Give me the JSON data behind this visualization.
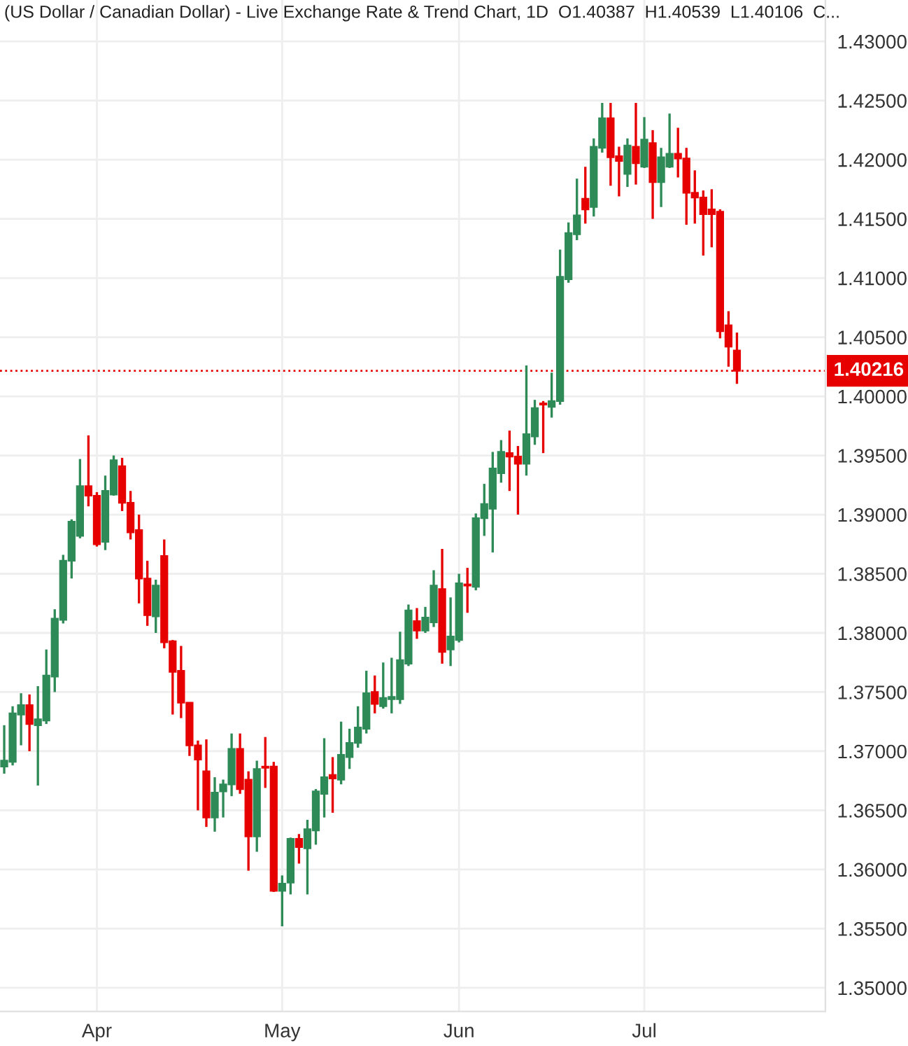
{
  "chart_data": {
    "type": "candlestick",
    "title": "(US Dollar / Canadian Dollar) - Live Exchange Rate & Trend Chart, 1D  O1.40387  H1.40539  L1.40106  C...",
    "categories": [
      null,
      null,
      null,
      null,
      null,
      null,
      null,
      null,
      null,
      null,
      null,
      "Apr",
      null,
      null,
      null,
      null,
      null,
      null,
      null,
      null,
      null,
      null,
      null,
      null,
      null,
      null,
      null,
      null,
      null,
      null,
      null,
      null,
      null,
      "May",
      null,
      null,
      null,
      null,
      null,
      null,
      null,
      null,
      null,
      null,
      null,
      null,
      null,
      null,
      null,
      null,
      null,
      null,
      null,
      null,
      "Jun",
      null,
      null,
      null,
      null,
      null,
      null,
      null,
      null,
      null,
      null,
      null,
      null,
      null,
      null,
      null,
      null,
      null,
      null,
      null,
      null,
      null,
      "Jul",
      null,
      null,
      null,
      null,
      null,
      null,
      null,
      null,
      null,
      null,
      null
    ],
    "ohlc": [
      [
        1.3687,
        1.3722,
        1.3681,
        1.3692
      ],
      [
        1.3691,
        1.3738,
        1.3688,
        1.3732
      ],
      [
        1.3731,
        1.3749,
        1.3705,
        1.3739
      ],
      [
        1.3739,
        1.3748,
        1.37,
        1.3723
      ],
      [
        1.3722,
        1.3755,
        1.3671,
        1.3727
      ],
      [
        1.3726,
        1.3786,
        1.3723,
        1.3764
      ],
      [
        1.3763,
        1.382,
        1.375,
        1.3812
      ],
      [
        1.3811,
        1.3866,
        1.3808,
        1.3861
      ],
      [
        1.3861,
        1.3896,
        1.3846,
        1.3894
      ],
      [
        1.3882,
        1.3947,
        1.388,
        1.3924
      ],
      [
        1.3924,
        1.3967,
        1.3907,
        1.3916
      ],
      [
        1.3916,
        1.3919,
        1.3873,
        1.3875
      ],
      [
        1.3877,
        1.3933,
        1.387,
        1.392
      ],
      [
        1.3917,
        1.395,
        1.3916,
        1.3946
      ],
      [
        1.3941,
        1.3948,
        1.3903,
        1.391
      ],
      [
        1.391,
        1.392,
        1.3879,
        1.3885
      ],
      [
        1.3887,
        1.39,
        1.3825,
        1.3846
      ],
      [
        1.3846,
        1.3861,
        1.3806,
        1.3815
      ],
      [
        1.3814,
        1.3845,
        1.38,
        1.384
      ],
      [
        1.3865,
        1.3879,
        1.3787,
        1.3792
      ],
      [
        1.3793,
        1.3794,
        1.3731,
        1.3767
      ],
      [
        1.3768,
        1.3789,
        1.3728,
        1.3741
      ],
      [
        1.3741,
        1.3741,
        1.3696,
        1.3705
      ],
      [
        1.3705,
        1.3709,
        1.365,
        1.3693
      ],
      [
        1.3683,
        1.371,
        1.3636,
        1.3644
      ],
      [
        1.3644,
        1.3678,
        1.3632,
        1.3665
      ],
      [
        1.3666,
        1.3676,
        1.3644,
        1.3672
      ],
      [
        1.3672,
        1.3715,
        1.3662,
        1.3702
      ],
      [
        1.3702,
        1.3715,
        1.3664,
        1.3668
      ],
      [
        1.3676,
        1.3683,
        1.3599,
        1.3628
      ],
      [
        1.3628,
        1.3692,
        1.3615,
        1.3685
      ],
      [
        1.3687,
        1.3712,
        1.3669,
        1.3686
      ],
      [
        1.3687,
        1.3691,
        1.3581,
        1.3582
      ],
      [
        1.3582,
        1.3595,
        1.3552,
        1.3588
      ],
      [
        1.3589,
        1.3627,
        1.3579,
        1.3626
      ],
      [
        1.3626,
        1.363,
        1.3605,
        1.3619
      ],
      [
        1.3618,
        1.3642,
        1.3579,
        1.3634
      ],
      [
        1.3633,
        1.3668,
        1.3621,
        1.3666
      ],
      [
        1.3664,
        1.3711,
        1.3644,
        1.3678
      ],
      [
        1.368,
        1.3695,
        1.3648,
        1.3677
      ],
      [
        1.3676,
        1.3725,
        1.3672,
        1.3697
      ],
      [
        1.3695,
        1.3719,
        1.3685,
        1.3707
      ],
      [
        1.3707,
        1.3738,
        1.3703,
        1.372
      ],
      [
        1.3719,
        1.3768,
        1.3715,
        1.3749
      ],
      [
        1.375,
        1.3764,
        1.3732,
        1.374
      ],
      [
        1.3738,
        1.3775,
        1.3736,
        1.3745
      ],
      [
        1.3744,
        1.3779,
        1.3732,
        1.3746
      ],
      [
        1.3744,
        1.3801,
        1.374,
        1.3777
      ],
      [
        1.3774,
        1.3824,
        1.3772,
        1.3819
      ],
      [
        1.381,
        1.3821,
        1.3795,
        1.3802
      ],
      [
        1.3802,
        1.3822,
        1.38,
        1.3813
      ],
      [
        1.3809,
        1.3853,
        1.3805,
        1.384
      ],
      [
        1.3837,
        1.3871,
        1.3774,
        1.3784
      ],
      [
        1.3786,
        1.383,
        1.3772,
        1.3797
      ],
      [
        1.3794,
        1.385,
        1.3792,
        1.3842
      ],
      [
        1.3841,
        1.3855,
        1.3817,
        1.384
      ],
      [
        1.3839,
        1.3901,
        1.3836,
        1.3897
      ],
      [
        1.3897,
        1.3926,
        1.3882,
        1.3909
      ],
      [
        1.3905,
        1.3953,
        1.3868,
        1.3939
      ],
      [
        1.3935,
        1.3963,
        1.3927,
        1.3953
      ],
      [
        1.3952,
        1.3971,
        1.392,
        1.3949
      ],
      [
        1.3949,
        1.3958,
        1.39,
        1.3943
      ],
      [
        1.3943,
        1.4026,
        1.3933,
        1.3968
      ],
      [
        1.3966,
        1.3997,
        1.3959,
        1.399
      ],
      [
        1.3994,
        1.3996,
        1.3952,
        1.3993
      ],
      [
        1.3991,
        1.402,
        1.3982,
        1.3996
      ],
      [
        1.3996,
        1.4124,
        1.3993,
        1.4101
      ],
      [
        1.4099,
        1.4147,
        1.4096,
        1.4138
      ],
      [
        1.4137,
        1.4184,
        1.4132,
        1.4153
      ],
      [
        1.4167,
        1.4194,
        1.4146,
        1.4158
      ],
      [
        1.416,
        1.4218,
        1.4152,
        1.4211
      ],
      [
        1.421,
        1.4248,
        1.4206,
        1.4235
      ],
      [
        1.4235,
        1.4248,
        1.4178,
        1.4202
      ],
      [
        1.4203,
        1.4211,
        1.4169,
        1.4199
      ],
      [
        1.4188,
        1.4218,
        1.4177,
        1.4212
      ],
      [
        1.4211,
        1.4248,
        1.4179,
        1.4197
      ],
      [
        1.4194,
        1.4236,
        1.4193,
        1.4217
      ],
      [
        1.4214,
        1.4225,
        1.415,
        1.4181
      ],
      [
        1.4181,
        1.421,
        1.416,
        1.4202
      ],
      [
        1.4194,
        1.4239,
        1.4193,
        1.4205
      ],
      [
        1.4205,
        1.4227,
        1.4185,
        1.4201
      ],
      [
        1.4201,
        1.421,
        1.4145,
        1.4172
      ],
      [
        1.4172,
        1.4191,
        1.4146,
        1.4168
      ],
      [
        1.4168,
        1.4174,
        1.4119,
        1.4154
      ],
      [
        1.4158,
        1.4175,
        1.4126,
        1.4154
      ],
      [
        1.4156,
        1.4158,
        1.4049,
        1.4055
      ],
      [
        1.406,
        1.4072,
        1.4025,
        1.4042
      ],
      [
        1.40387,
        1.40539,
        1.40106,
        1.40216
      ]
    ],
    "colors": [
      "#2e8b57",
      "#2e8b57",
      "#2e8b57",
      "#e60000",
      "#2e8b57",
      "#2e8b57",
      "#2e8b57",
      "#2e8b57",
      "#2e8b57",
      "#2e8b57",
      "#e60000",
      "#e60000",
      "#2e8b57",
      "#2e8b57",
      "#e60000",
      "#e60000",
      "#e60000",
      "#e60000",
      "#2e8b57",
      "#e60000",
      "#e60000",
      "#e60000",
      "#e60000",
      "#e60000",
      "#e60000",
      "#2e8b57",
      "#2e8b57",
      "#2e8b57",
      "#e60000",
      "#e60000",
      "#2e8b57",
      "#e60000",
      "#e60000",
      "#2e8b57",
      "#2e8b57",
      "#e60000",
      "#2e8b57",
      "#2e8b57",
      "#2e8b57",
      "#e60000",
      "#2e8b57",
      "#2e8b57",
      "#2e8b57",
      "#2e8b57",
      "#e60000",
      "#2e8b57",
      "#2e8b57",
      "#2e8b57",
      "#2e8b57",
      "#e60000",
      "#2e8b57",
      "#2e8b57",
      "#e60000",
      "#2e8b57",
      "#2e8b57",
      "#e60000",
      "#2e8b57",
      "#2e8b57",
      "#2e8b57",
      "#2e8b57",
      "#e60000",
      "#e60000",
      "#2e8b57",
      "#2e8b57",
      "#e60000",
      "#2e8b57",
      "#2e8b57",
      "#2e8b57",
      "#2e8b57",
      "#e60000",
      "#2e8b57",
      "#2e8b57",
      "#e60000",
      "#e60000",
      "#2e8b57",
      "#e60000",
      "#2e8b57",
      "#e60000",
      "#2e8b57",
      "#2e8b57",
      "#e60000",
      "#e60000",
      "#e60000",
      "#e60000",
      "#e60000",
      "#e60000",
      "#e60000",
      "#e60000"
    ],
    "ylim": [
      1.348,
      1.4335
    ],
    "yticks": [
      {
        "value": 1.35,
        "label": "1.35000"
      },
      {
        "value": 1.355,
        "label": "1.35500"
      },
      {
        "value": 1.36,
        "label": "1.36000"
      },
      {
        "value": 1.365,
        "label": "1.36500"
      },
      {
        "value": 1.37,
        "label": "1.37000"
      },
      {
        "value": 1.375,
        "label": "1.37500"
      },
      {
        "value": 1.38,
        "label": "1.38000"
      },
      {
        "value": 1.385,
        "label": "1.38500"
      },
      {
        "value": 1.39,
        "label": "1.39000"
      },
      {
        "value": 1.395,
        "label": "1.39500"
      },
      {
        "value": 1.4,
        "label": "1.40000"
      },
      {
        "value": 1.405,
        "label": "1.40500"
      },
      {
        "value": 1.41,
        "label": "1.41000"
      },
      {
        "value": 1.415,
        "label": "1.41500"
      },
      {
        "value": 1.42,
        "label": "1.42000"
      },
      {
        "value": 1.425,
        "label": "1.42500"
      },
      {
        "value": 1.43,
        "label": "1.43000"
      }
    ],
    "ref_lines": [
      {
        "axis": "y",
        "value": 1.40216,
        "label": "1.40216",
        "color": "#e60000",
        "line_style": "dotted"
      }
    ],
    "grid": true,
    "legend": false
  }
}
